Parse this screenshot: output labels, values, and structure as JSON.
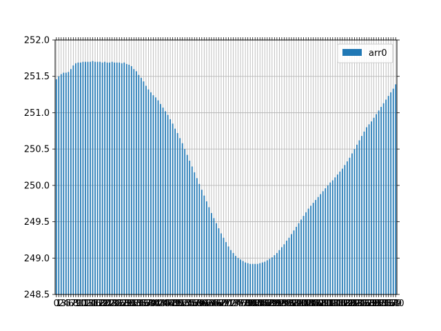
{
  "chart_data": {
    "type": "bar",
    "ylim": [
      248.5,
      252.0
    ],
    "yticks": [
      248.5,
      249.0,
      249.5,
      250.0,
      250.5,
      251.0,
      251.5,
      252.0
    ],
    "ytick_labels": [
      "248.5",
      "249.0",
      "249.5",
      "250.0",
      "250.5",
      "251.0",
      "251.5",
      "252.0"
    ],
    "grid": true,
    "legend_position": "top-right",
    "bar_color": "#1f77b4",
    "series": [
      {
        "name": "arr0",
        "values": [
          251.46,
          251.5,
          251.53,
          251.55,
          251.55,
          251.56,
          251.6,
          251.65,
          251.68,
          251.69,
          251.69,
          251.7,
          251.7,
          251.7,
          251.7,
          251.71,
          251.7,
          251.7,
          251.7,
          251.69,
          251.7,
          251.69,
          251.69,
          251.7,
          251.69,
          251.69,
          251.69,
          251.68,
          251.69,
          251.67,
          251.66,
          251.64,
          251.6,
          251.57,
          251.52,
          251.48,
          251.43,
          251.37,
          251.32,
          251.28,
          251.24,
          251.21,
          251.17,
          251.12,
          251.07,
          251.02,
          250.97,
          250.91,
          250.85,
          250.78,
          250.72,
          250.65,
          250.58,
          250.5,
          250.42,
          250.34,
          250.26,
          250.18,
          250.1,
          250.02,
          249.94,
          249.86,
          249.78,
          249.7,
          249.62,
          249.55,
          249.48,
          249.41,
          249.34,
          249.28,
          249.22,
          249.16,
          249.11,
          249.07,
          249.03,
          249.0,
          248.98,
          248.96,
          248.94,
          248.93,
          248.92,
          248.92,
          248.92,
          248.92,
          248.93,
          248.94,
          248.95,
          248.97,
          248.99,
          249.01,
          249.04,
          249.07,
          249.11,
          249.15,
          249.19,
          249.24,
          249.28,
          249.33,
          249.38,
          249.43,
          249.48,
          249.53,
          249.58,
          249.63,
          249.68,
          249.72,
          249.76,
          249.8,
          249.84,
          249.88,
          249.92,
          249.96,
          250.0,
          250.04,
          250.07,
          250.11,
          250.15,
          250.19,
          250.23,
          250.28,
          250.33,
          250.38,
          250.44,
          250.5,
          250.56,
          250.62,
          250.68,
          250.74,
          250.8,
          250.84,
          250.88,
          250.93,
          250.98,
          251.03,
          251.08,
          251.13,
          251.18,
          251.23,
          251.28,
          251.33,
          251.39
        ]
      }
    ]
  }
}
